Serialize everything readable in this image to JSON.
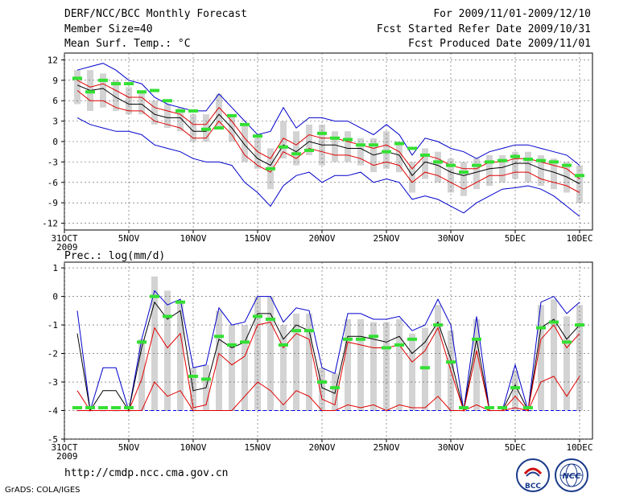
{
  "header": {
    "title": "DERF/NCC/BCC Monthly Forecast",
    "member": "Member Size=40",
    "variable": "Mean Surf. Temp.: °C",
    "period": "For 2009/11/01-2009/12/10",
    "started": "Fcst Started Refer Date 2009/10/31",
    "produced": "Fcst Produced Date 2009/11/01"
  },
  "footer": {
    "url": "http://cmdp.ncc.cma.gov.cn",
    "grads": "GrADS: COLA/IGES",
    "bcc_logo": "BCC",
    "ncc_logo": "NCC"
  },
  "colors": {
    "box": "#d3d3d3",
    "mean": "#000000",
    "min_max": "#0000cc",
    "quartile": "#e00000",
    "obs": "#33e033",
    "zero_line": "#0000ff"
  },
  "chart_data": [
    {
      "type": "line",
      "title": "Mean Surf. Temp.: °C",
      "x_tick_labels": [
        "31OCT",
        "5NOV",
        "10NOV",
        "15NOV",
        "20NOV",
        "25NOV",
        "30NOV",
        "5DEC",
        "10DEC"
      ],
      "x_tick_days": [
        0,
        5,
        10,
        15,
        20,
        25,
        30,
        35,
        40
      ],
      "x_extra_label": "2009",
      "days": [
        1,
        2,
        3,
        4,
        5,
        6,
        7,
        8,
        9,
        10,
        11,
        12,
        13,
        14,
        15,
        16,
        17,
        18,
        19,
        20,
        21,
        22,
        23,
        24,
        25,
        26,
        27,
        28,
        29,
        30,
        31,
        32,
        33,
        34,
        35,
        36,
        37,
        38,
        39,
        40
      ],
      "ylim": [
        -13,
        13
      ],
      "yticks": [
        12,
        9,
        6,
        3,
        0,
        -3,
        -6,
        -9,
        -12
      ],
      "grid": "dashed",
      "series": [
        {
          "name": "max",
          "color": "#0000cc",
          "values": [
            10.5,
            11.0,
            11.5,
            10.5,
            9.0,
            8.5,
            6.5,
            5.5,
            5.0,
            4.5,
            4.5,
            7.0,
            5.0,
            3.0,
            1.0,
            1.5,
            5.0,
            2.0,
            3.5,
            3.5,
            3.0,
            3.0,
            2.0,
            1.0,
            2.5,
            1.0,
            -2.0,
            0.5,
            0.0,
            -1.0,
            -1.5,
            -2.5,
            -1.5,
            -1.0,
            -0.5,
            -0.5,
            -1.0,
            -1.5,
            -2.0,
            -3.5
          ]
        },
        {
          "name": "q75",
          "color": "#e00000",
          "values": [
            9.0,
            8.0,
            8.5,
            7.5,
            6.5,
            6.5,
            5.0,
            4.5,
            4.0,
            2.5,
            2.5,
            5.0,
            3.0,
            0.5,
            -1.5,
            -2.5,
            0.5,
            -0.5,
            1.0,
            0.5,
            0.5,
            0.0,
            -0.5,
            -1.0,
            -0.5,
            -1.5,
            -4.0,
            -2.0,
            -2.5,
            -3.5,
            -4.0,
            -4.0,
            -3.0,
            -3.0,
            -2.5,
            -2.5,
            -3.0,
            -3.5,
            -4.0,
            -5.5
          ]
        },
        {
          "name": "mean",
          "color": "#000000",
          "values": [
            8.3,
            7.5,
            7.8,
            6.5,
            5.5,
            5.5,
            4.0,
            3.5,
            3.5,
            1.5,
            1.5,
            4.0,
            2.0,
            -0.5,
            -2.5,
            -3.5,
            -0.5,
            -1.5,
            0.0,
            -0.5,
            -0.5,
            -1.0,
            -1.0,
            -2.0,
            -1.5,
            -2.0,
            -5.0,
            -3.0,
            -3.5,
            -4.5,
            -5.0,
            -4.5,
            -4.0,
            -3.8,
            -3.2,
            -3.2,
            -4.0,
            -4.5,
            -5.2,
            -6.2
          ]
        },
        {
          "name": "q25",
          "color": "#e00000",
          "values": [
            7.5,
            6.0,
            6.0,
            5.0,
            4.5,
            4.5,
            3.0,
            2.5,
            2.0,
            0.5,
            0.5,
            3.0,
            1.0,
            -2.0,
            -3.5,
            -4.5,
            -1.5,
            -2.5,
            -1.0,
            -1.5,
            -2.0,
            -2.0,
            -2.5,
            -3.5,
            -3.0,
            -3.5,
            -6.0,
            -4.5,
            -5.0,
            -6.0,
            -7.0,
            -6.0,
            -5.0,
            -5.0,
            -4.5,
            -4.5,
            -5.5,
            -6.0,
            -6.5,
            -7.5
          ]
        },
        {
          "name": "min",
          "color": "#0000cc",
          "values": [
            3.5,
            2.5,
            2.0,
            1.5,
            1.5,
            1.0,
            -0.5,
            -1.0,
            -1.5,
            -2.5,
            -3.0,
            -3.0,
            -3.5,
            -6.0,
            -7.5,
            -9.5,
            -6.5,
            -5.0,
            -4.5,
            -6.0,
            -5.0,
            -5.0,
            -4.5,
            -6.0,
            -5.5,
            -6.0,
            -8.5,
            -8.0,
            -8.5,
            -9.5,
            -10.5,
            -9.0,
            -8.0,
            -7.0,
            -6.8,
            -6.5,
            -7.0,
            -8.0,
            -9.5,
            -11.0
          ]
        }
      ],
      "obs": [
        9.3,
        7.3,
        9.0,
        8.5,
        8.5,
        7.3,
        7.5,
        6.0,
        4.5,
        4.5,
        1.8,
        2.0,
        3.8,
        2.5,
        0.8,
        -4.0,
        -0.8,
        -1.8,
        -1.3,
        1.2,
        0.5,
        0.3,
        -0.5,
        -0.5,
        -1.5,
        -0.3,
        -1.0,
        -2.0,
        -3.0,
        -3.5,
        -4.5,
        -3.5,
        -3.0,
        -2.8,
        -2.2,
        -2.6,
        -2.8,
        -3.0,
        -3.5,
        -5.0
      ],
      "box_range": [
        [
          5.5,
          10.5
        ],
        [
          4.5,
          10.5
        ],
        [
          5.0,
          10.0
        ],
        [
          4.5,
          9.0
        ],
        [
          4.0,
          8.0
        ],
        [
          4.0,
          7.5
        ],
        [
          2.5,
          6.0
        ],
        [
          2.0,
          5.5
        ],
        [
          1.5,
          5.0
        ],
        [
          0.0,
          4.0
        ],
        [
          0.0,
          4.0
        ],
        [
          2.0,
          7.0
        ],
        [
          0.0,
          4.0
        ],
        [
          -3.0,
          2.5
        ],
        [
          -4.0,
          0.5
        ],
        [
          -7.0,
          -1.0
        ],
        [
          -2.5,
          3.0
        ],
        [
          -3.5,
          1.5
        ],
        [
          -2.0,
          2.5
        ],
        [
          -3.5,
          2.5
        ],
        [
          -3.0,
          1.5
        ],
        [
          -3.0,
          1.5
        ],
        [
          -3.5,
          0.5
        ],
        [
          -4.5,
          0.5
        ],
        [
          -4.0,
          1.5
        ],
        [
          -4.5,
          0.0
        ],
        [
          -7.5,
          -3.0
        ],
        [
          -5.5,
          -1.0
        ],
        [
          -6.0,
          -1.5
        ],
        [
          -7.5,
          -2.5
        ],
        [
          -8.0,
          -3.0
        ],
        [
          -7.0,
          -2.5
        ],
        [
          -6.5,
          -2.0
        ],
        [
          -6.0,
          -2.0
        ],
        [
          -5.5,
          -1.5
        ],
        [
          -6.0,
          -1.5
        ],
        [
          -6.5,
          -2.0
        ],
        [
          -7.0,
          -2.5
        ],
        [
          -7.5,
          -3.0
        ],
        [
          -9.0,
          -3.5
        ]
      ]
    },
    {
      "type": "line",
      "title": "Prec.: log(mm/d)",
      "x_tick_labels": [
        "31OCT",
        "5NOV",
        "10NOV",
        "15NOV",
        "20NOV",
        "25NOV",
        "30NOV",
        "5DEC",
        "10DEC"
      ],
      "x_tick_days": [
        0,
        5,
        10,
        15,
        20,
        25,
        30,
        35,
        40
      ],
      "x_extra_label": "2009",
      "days": [
        1,
        2,
        3,
        4,
        5,
        6,
        7,
        8,
        9,
        10,
        11,
        12,
        13,
        14,
        15,
        16,
        17,
        18,
        19,
        20,
        21,
        22,
        23,
        24,
        25,
        26,
        27,
        28,
        29,
        30,
        31,
        32,
        33,
        34,
        35,
        36,
        37,
        38,
        39,
        40
      ],
      "ylim": [
        -5,
        1.2
      ],
      "yticks": [
        1,
        0,
        -1,
        -2,
        -3,
        -4,
        -5
      ],
      "zero_line": -4,
      "grid": "dashed",
      "series": [
        {
          "name": "max",
          "color": "#0000cc",
          "values": [
            -0.5,
            -4.0,
            -2.5,
            -2.5,
            -4.0,
            -1.5,
            0.2,
            -0.3,
            -0.1,
            -2.5,
            -2.4,
            -0.4,
            -1.0,
            -0.9,
            0.0,
            0.0,
            -0.9,
            -0.4,
            -0.5,
            -2.5,
            -2.7,
            -0.6,
            -0.6,
            -0.8,
            -0.8,
            -0.7,
            -1.2,
            -1.0,
            -0.1,
            -1.0,
            -4.0,
            -0.7,
            -4.0,
            -4.0,
            -2.4,
            -4.0,
            -0.2,
            0.0,
            -0.6,
            -0.2
          ]
        },
        {
          "name": "mean",
          "color": "#000000",
          "values": [
            -1.3,
            -4.0,
            -3.3,
            -3.3,
            -4.0,
            -1.8,
            -0.2,
            -0.8,
            -0.5,
            -3.3,
            -3.2,
            -1.5,
            -1.8,
            -1.6,
            -0.6,
            -0.6,
            -1.5,
            -1.0,
            -1.2,
            -3.2,
            -3.4,
            -1.4,
            -1.4,
            -1.5,
            -1.6,
            -1.4,
            -2.0,
            -1.6,
            -0.9,
            -2.2,
            -4.0,
            -1.5,
            -4.0,
            -4.0,
            -3.1,
            -4.0,
            -1.1,
            -0.8,
            -1.5,
            -1.0
          ]
        },
        {
          "name": "q75",
          "color": "#e00000",
          "values": [
            -3.3,
            -4.0,
            -4.0,
            -4.0,
            -4.0,
            -2.9,
            -1.1,
            -1.8,
            -1.3,
            -3.9,
            -3.8,
            -2.0,
            -2.4,
            -2.1,
            -1.0,
            -0.9,
            -1.8,
            -1.3,
            -1.5,
            -3.6,
            -3.8,
            -1.6,
            -1.7,
            -1.8,
            -1.8,
            -1.7,
            -2.3,
            -1.9,
            -1.1,
            -2.6,
            -4.0,
            -1.9,
            -4.0,
            -4.0,
            -3.5,
            -4.0,
            -1.5,
            -1.0,
            -1.8,
            -1.3
          ]
        },
        {
          "name": "q25",
          "color": "#e00000",
          "values": [
            -4.0,
            -4.0,
            -4.0,
            -4.0,
            -4.0,
            -4.0,
            -3.0,
            -3.5,
            -3.3,
            -4.0,
            -4.0,
            -4.0,
            -4.0,
            -3.5,
            -3.0,
            -3.3,
            -3.8,
            -3.3,
            -3.5,
            -4.0,
            -4.0,
            -3.8,
            -3.9,
            -3.8,
            -4.0,
            -3.8,
            -3.9,
            -3.9,
            -3.5,
            -4.0,
            -4.0,
            -3.8,
            -4.0,
            -4.0,
            -3.9,
            -4.0,
            -3.0,
            -2.8,
            -3.5,
            -2.8
          ]
        }
      ],
      "obs": [
        -3.9,
        -3.9,
        -3.9,
        -3.9,
        -3.9,
        -1.6,
        0.0,
        -0.7,
        -0.2,
        -2.8,
        -2.9,
        -1.4,
        -1.7,
        -1.6,
        -0.7,
        -0.8,
        -1.7,
        -1.2,
        -1.2,
        -3.0,
        -3.2,
        -1.5,
        -1.5,
        -1.4,
        -1.8,
        -1.7,
        -1.5,
        -2.5,
        -1.0,
        -2.3,
        -3.9,
        -1.5,
        -3.9,
        -3.9,
        -3.2,
        -3.9,
        -1.1,
        -0.9,
        -1.6,
        -1.0
      ],
      "box_range": [
        [
          -4.0,
          -4.0
        ],
        [
          -4.0,
          -4.0
        ],
        [
          -4.0,
          -4.0
        ],
        [
          -4.0,
          -4.0
        ],
        [
          -4.0,
          -4.0
        ],
        [
          -4.0,
          -1.5
        ],
        [
          -4.0,
          0.7
        ],
        [
          -4.0,
          0.2
        ],
        [
          -4.0,
          -0.2
        ],
        [
          -4.0,
          -2.5
        ],
        [
          -4.0,
          -2.4
        ],
        [
          -4.0,
          -0.5
        ],
        [
          -4.0,
          -1.0
        ],
        [
          -4.0,
          -1.0
        ],
        [
          -4.0,
          0.0
        ],
        [
          -4.0,
          0.0
        ],
        [
          -4.0,
          -1.0
        ],
        [
          -4.0,
          -0.6
        ],
        [
          -4.0,
          -0.6
        ],
        [
          -4.0,
          -2.5
        ],
        [
          -4.0,
          -2.7
        ],
        [
          -4.0,
          -0.8
        ],
        [
          -4.0,
          -0.8
        ],
        [
          -4.0,
          -0.9
        ],
        [
          -4.0,
          -0.9
        ],
        [
          -4.0,
          -0.8
        ],
        [
          -4.0,
          -1.3
        ],
        [
          -4.0,
          -1.1
        ],
        [
          -4.0,
          -0.3
        ],
        [
          -4.0,
          -1.2
        ],
        [
          -4.0,
          -4.0
        ],
        [
          -4.0,
          -0.8
        ],
        [
          -4.0,
          -4.0
        ],
        [
          -4.0,
          -4.0
        ],
        [
          -4.0,
          -2.6
        ],
        [
          -4.0,
          -4.0
        ],
        [
          -4.0,
          -0.3
        ],
        [
          -4.0,
          -0.1
        ],
        [
          -4.0,
          -0.7
        ],
        [
          -4.0,
          -0.3
        ]
      ]
    }
  ]
}
